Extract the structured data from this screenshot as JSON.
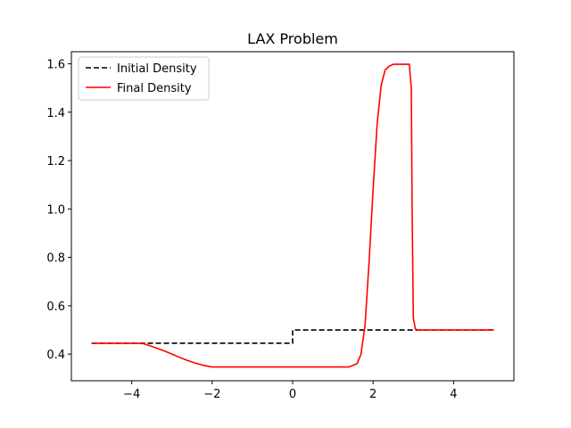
{
  "chart_data": {
    "type": "line",
    "title": "LAX Problem",
    "xlabel": "",
    "ylabel": "",
    "xlim": [
      -5.5,
      5.5
    ],
    "ylim": [
      0.29,
      1.65
    ],
    "xticks": [
      -4,
      -2,
      0,
      2,
      4
    ],
    "xtick_labels": [
      "−4",
      "−2",
      "0",
      "2",
      "4"
    ],
    "yticks": [
      0.4,
      0.6,
      0.8,
      1.0,
      1.2,
      1.4,
      1.6
    ],
    "ytick_labels": [
      "0.4",
      "0.6",
      "0.8",
      "1.0",
      "1.2",
      "1.4",
      "1.6"
    ],
    "grid": false,
    "legend_position": "upper-left",
    "series": [
      {
        "name": "Initial Density",
        "color": "#000000",
        "style": "dashed",
        "x": [
          -5.0,
          0.0,
          0.0,
          5.0
        ],
        "y": [
          0.445,
          0.445,
          0.5,
          0.5
        ]
      },
      {
        "name": "Final Density",
        "color": "#ff0000",
        "style": "solid",
        "x": [
          -5.0,
          -3.9,
          -3.7,
          -3.5,
          -3.2,
          -3.0,
          -2.8,
          -2.6,
          -2.4,
          -2.2,
          -2.0,
          0.0,
          1.4,
          1.6,
          1.7,
          1.8,
          1.9,
          2.0,
          2.1,
          2.2,
          2.3,
          2.4,
          2.5,
          2.6,
          2.7,
          2.8,
          2.9,
          2.95,
          2.97,
          3.0,
          3.05,
          3.1,
          5.0
        ],
        "y": [
          0.445,
          0.445,
          0.443,
          0.432,
          0.414,
          0.4,
          0.386,
          0.373,
          0.362,
          0.353,
          0.347,
          0.347,
          0.347,
          0.36,
          0.4,
          0.52,
          0.78,
          1.08,
          1.35,
          1.51,
          1.575,
          1.59,
          1.598,
          1.598,
          1.598,
          1.598,
          1.598,
          1.5,
          1.0,
          0.55,
          0.505,
          0.5,
          0.5
        ]
      }
    ]
  }
}
